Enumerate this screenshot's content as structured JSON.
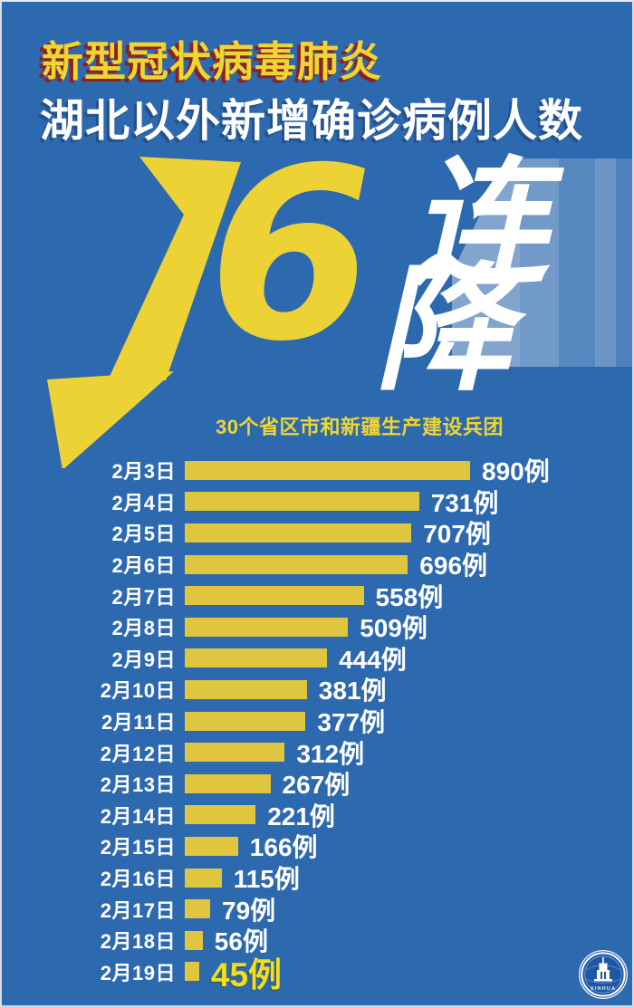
{
  "poster": {
    "topline": "新型冠状病毒肺炎",
    "headline": "湖北以外新增确诊病例人数",
    "big_number": "16",
    "big_word_1": "连",
    "big_word_2": "降",
    "subtitle": "30个省区市和新疆生产建设兵团"
  },
  "colors": {
    "background": "#2D69AF",
    "title_yellow": "#EFD531",
    "title_shadow_red": "#8B2222",
    "headline_white": "#FFFFFF",
    "bar_yellow": "#DFC63E",
    "highlight_yellow": "#F2DE1E",
    "stripe_white": "#FFFFFF",
    "border_light": "#D9DEE5"
  },
  "logo": {
    "icon": "xinhua-badge-icon",
    "text": "XINHUA"
  },
  "chart_data": {
    "type": "bar",
    "orientation": "horizontal",
    "title": "30个省区市和新疆生产建设兵团",
    "categories": [
      "2月3日",
      "2月4日",
      "2月5日",
      "2月6日",
      "2月7日",
      "2月8日",
      "2月9日",
      "2月10日",
      "2月11日",
      "2月12日",
      "2月13日",
      "2月14日",
      "2月15日",
      "2月16日",
      "2月17日",
      "2月18日",
      "2月19日"
    ],
    "values": [
      890,
      731,
      707,
      696,
      558,
      509,
      444,
      381,
      377,
      312,
      267,
      221,
      166,
      115,
      79,
      56,
      45
    ],
    "unit": "例",
    "highlight_index": 16,
    "xlim": [
      0,
      890
    ],
    "grid": false,
    "legend": false,
    "value_labels_shown": true
  }
}
